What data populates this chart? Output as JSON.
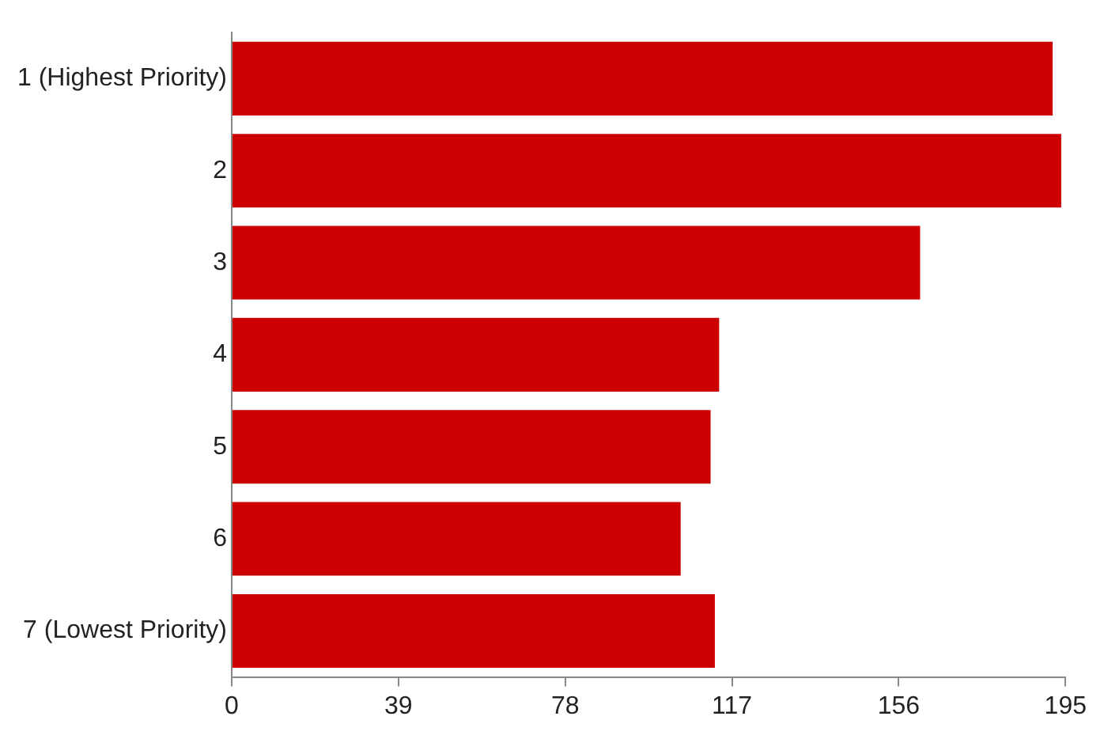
{
  "chart_data": {
    "type": "bar",
    "orientation": "horizontal",
    "categories": [
      "1 (Highest Priority)",
      "2",
      "3",
      "4",
      "5",
      "6",
      "7 (Lowest Priority)"
    ],
    "values": [
      192,
      194,
      161,
      114,
      112,
      105,
      113
    ],
    "color": "#cc0000",
    "xlim": [
      0,
      195
    ],
    "xticks": [
      0,
      39,
      78,
      117,
      156,
      195
    ],
    "grid": false,
    "legend": false
  }
}
